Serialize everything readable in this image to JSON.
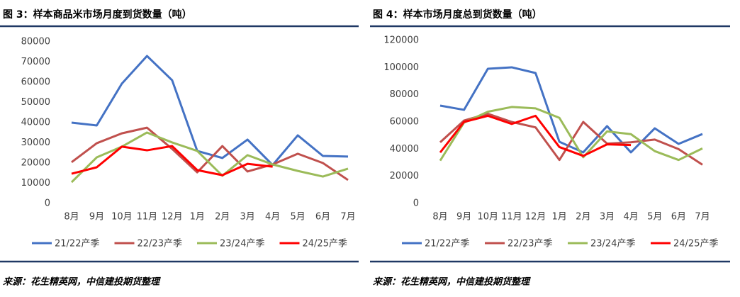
{
  "chart_data": [
    {
      "type": "line",
      "title": "图 3：样本商品米市场月度到货数量（吨）",
      "source": "来源：花生精英网，中信建投期货整理",
      "categories": [
        "8月",
        "9月",
        "10月",
        "11月",
        "12月",
        "1月",
        "2月",
        "3月",
        "4月",
        "5月",
        "6月",
        "7月"
      ],
      "ylim": [
        0,
        80000
      ],
      "yticks": [
        0,
        10000,
        20000,
        30000,
        40000,
        50000,
        60000,
        70000,
        80000
      ],
      "series": [
        {
          "name": "21/22产季",
          "color": "#4472c4",
          "values": [
            40000,
            38600,
            59300,
            73000,
            61000,
            26000,
            22500,
            31600,
            19000,
            33700,
            23500,
            23200
          ]
        },
        {
          "name": "22/23产季",
          "color": "#c0504d",
          "values": [
            20400,
            29800,
            34700,
            37500,
            27000,
            15400,
            28400,
            15800,
            19300,
            24600,
            20000,
            11600
          ]
        },
        {
          "name": "23/24产季",
          "color": "#9bbb59",
          "values": [
            10500,
            22800,
            28100,
            35100,
            30200,
            26000,
            13700,
            23900,
            19300,
            16100,
            13300,
            17200
          ]
        },
        {
          "name": "24/25产季",
          "color": "#ff0000",
          "values": [
            14700,
            17900,
            28100,
            26300,
            28400,
            16500,
            14000,
            19600,
            18200,
            null,
            null,
            null
          ]
        }
      ]
    },
    {
      "type": "line",
      "title": "图 4：样本市场月度总到货数量（吨）",
      "source": "来源：花生精英网，中信建投期货整理",
      "categories": [
        "8月",
        "9月",
        "10月",
        "11月",
        "12月",
        "1月",
        "2月",
        "3月",
        "4月",
        "5月",
        "6月",
        "7月"
      ],
      "ylim": [
        0,
        120000
      ],
      "yticks": [
        0,
        20000,
        40000,
        60000,
        80000,
        100000,
        120000
      ],
      "series": [
        {
          "name": "21/22产季",
          "color": "#4472c4",
          "values": [
            72000,
            68900,
            99100,
            100200,
            96000,
            45400,
            37600,
            56900,
            37600,
            55300,
            43800,
            51100
          ]
        },
        {
          "name": "22/23产季",
          "color": "#c0504d",
          "values": [
            45000,
            61000,
            66000,
            60000,
            56000,
            32000,
            60000,
            44000,
            45000,
            47000,
            40000,
            28500
          ]
        },
        {
          "name": "23/24产季",
          "color": "#9bbb59",
          "values": [
            31500,
            59500,
            67500,
            71000,
            70000,
            63000,
            34000,
            53000,
            51000,
            38500,
            32000,
            40500
          ]
        },
        {
          "name": "24/25产季",
          "color": "#ff0000",
          "values": [
            37500,
            60000,
            64500,
            58500,
            64500,
            41500,
            35000,
            43500,
            43000,
            null,
            null,
            null
          ]
        }
      ]
    }
  ]
}
